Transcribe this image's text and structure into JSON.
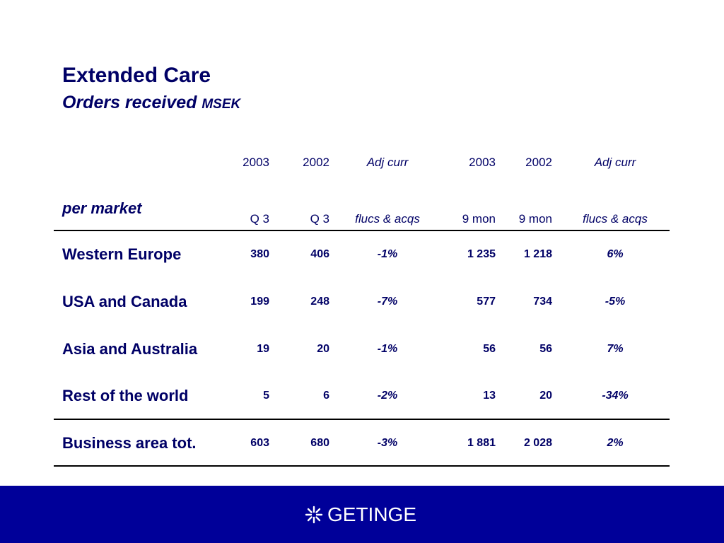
{
  "title": "Extended Care",
  "subtitle": "Orders received",
  "subtitle_unit": "MSEK",
  "row_header": "per market",
  "columns": [
    {
      "line1": "2003",
      "line2": "Q 3"
    },
    {
      "line1": "2002",
      "line2": "Q 3"
    },
    {
      "line1": "Adj curr",
      "line2": "flucs & acqs"
    },
    {
      "line1": "2003",
      "line2": "9 mon"
    },
    {
      "line1": "2002",
      "line2": "9 mon"
    },
    {
      "line1": "Adj curr",
      "line2": "flucs & acqs"
    }
  ],
  "rows": [
    {
      "label": "Western Europe",
      "values": [
        "380",
        "406",
        "-1%",
        "1 235",
        "1 218",
        "6%"
      ]
    },
    {
      "label": "USA and Canada",
      "values": [
        "199",
        "248",
        "-7%",
        "577",
        "734",
        "-5%"
      ]
    },
    {
      "label": "Asia and Australia",
      "values": [
        "19",
        "20",
        "-1%",
        "56",
        "56",
        "7%"
      ]
    },
    {
      "label": "Rest of the world",
      "values": [
        "5",
        "6",
        "-2%",
        "13",
        "20",
        "-34%"
      ]
    },
    {
      "label": "Business area tot.",
      "values": [
        "603",
        "680",
        "-3%",
        "1 881",
        "2 028",
        "2%"
      ]
    }
  ],
  "footer": {
    "logo_text": "GETINGE",
    "logo_icon": "getinge-star-icon",
    "background": "#000099"
  },
  "colors": {
    "text": "#000066",
    "rule": "#000000"
  }
}
